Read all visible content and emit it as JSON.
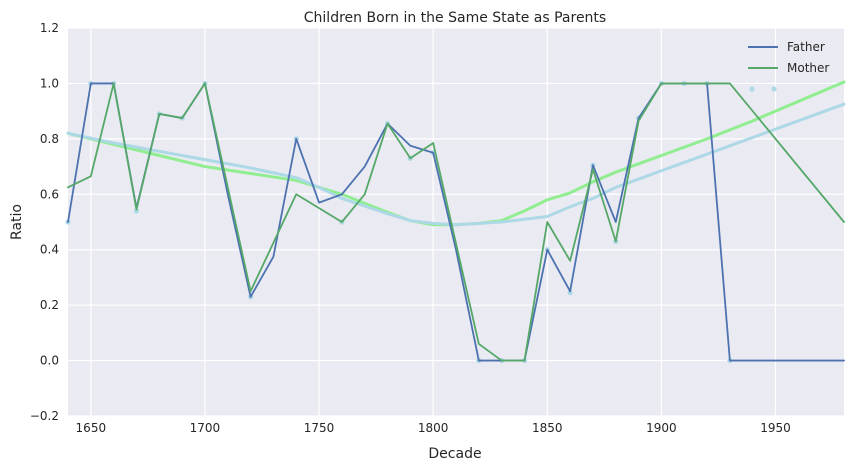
{
  "chart_data": {
    "type": "line",
    "title": "Children Born in the Same State as Parents",
    "xlabel": "Decade",
    "ylabel": "Ratio",
    "xlim": [
      1640,
      1980
    ],
    "ylim": [
      -0.2,
      1.2
    ],
    "xticks": [
      1650,
      1700,
      1750,
      1800,
      1850,
      1900,
      1950
    ],
    "yticks": [
      -0.2,
      0.0,
      0.2,
      0.4,
      0.6,
      0.8,
      1.0,
      1.2
    ],
    "xtick_labels": [
      "1650",
      "1700",
      "1750",
      "1800",
      "1850",
      "1900",
      "1950"
    ],
    "ytick_labels": [
      "−0.2",
      "0.0",
      "0.2",
      "0.4",
      "0.6",
      "0.8",
      "1.0",
      "1.2"
    ],
    "grid": true,
    "legend_position": "top-right",
    "series": [
      {
        "name": "Father",
        "color": "#4c72b0",
        "style": "line",
        "x": [
          1640,
          1650,
          1660,
          1670,
          1680,
          1690,
          1700,
          1710,
          1720,
          1730,
          1740,
          1750,
          1760,
          1770,
          1780,
          1790,
          1800,
          1810,
          1820,
          1830,
          1840,
          1850,
          1860,
          1870,
          1880,
          1890,
          1900,
          1910,
          1920,
          1930,
          1940,
          1950,
          1960,
          1970,
          1980
        ],
        "y": [
          0.5,
          1.0,
          1.0,
          0.55,
          0.89,
          0.875,
          1.0,
          0.6,
          0.23,
          0.375,
          0.8,
          0.57,
          0.6,
          0.7,
          0.855,
          0.775,
          0.75,
          0.4,
          0.0,
          0.0,
          0.0,
          0.4,
          0.25,
          0.705,
          0.5,
          0.875,
          1.0,
          1.0,
          1.0,
          0.0,
          0.0,
          0.0,
          0.0,
          0.0,
          0.0
        ]
      },
      {
        "name": "Mother",
        "color": "#55a868",
        "style": "line",
        "x": [
          1640,
          1650,
          1660,
          1670,
          1680,
          1690,
          1700,
          1720,
          1740,
          1760,
          1770,
          1780,
          1790,
          1800,
          1820,
          1830,
          1840,
          1850,
          1860,
          1870,
          1880,
          1890,
          1900,
          1910,
          1920,
          1930,
          1980
        ],
        "y": [
          0.625,
          0.665,
          1.0,
          0.545,
          0.89,
          0.875,
          1.0,
          0.25,
          0.6,
          0.5,
          0.6,
          0.855,
          0.73,
          0.785,
          0.06,
          0.0,
          0.0,
          0.5,
          0.36,
          0.69,
          0.43,
          0.865,
          1.0,
          1.0,
          1.0,
          1.0,
          0.5
        ]
      },
      {
        "name": "",
        "color": "#90ee90",
        "style": "smooth",
        "x": [
          1640,
          1660,
          1680,
          1700,
          1720,
          1740,
          1760,
          1780,
          1790,
          1800,
          1810,
          1820,
          1830,
          1840,
          1850,
          1860,
          1870,
          1880,
          1890,
          1900,
          1920,
          1940,
          1960,
          1980
        ],
        "y": [
          0.82,
          0.78,
          0.74,
          0.7,
          0.675,
          0.65,
          0.6,
          0.535,
          0.505,
          0.49,
          0.49,
          0.495,
          0.505,
          0.54,
          0.58,
          0.605,
          0.645,
          0.68,
          0.71,
          0.74,
          0.8,
          0.865,
          0.935,
          1.005
        ]
      },
      {
        "name": "",
        "color": "#add8e6",
        "style": "smooth",
        "x": [
          1640,
          1660,
          1680,
          1700,
          1720,
          1740,
          1750,
          1760,
          1780,
          1790,
          1800,
          1810,
          1820,
          1830,
          1840,
          1850,
          1860,
          1870,
          1880,
          1900,
          1920,
          1940,
          1960,
          1980
        ],
        "y": [
          0.82,
          0.785,
          0.755,
          0.725,
          0.695,
          0.66,
          0.625,
          0.585,
          0.53,
          0.505,
          0.495,
          0.49,
          0.495,
          0.5,
          0.51,
          0.52,
          0.555,
          0.585,
          0.625,
          0.685,
          0.745,
          0.805,
          0.865,
          0.925
        ]
      },
      {
        "name": "",
        "color": "#add8e6",
        "style": "scatter",
        "x": [
          1640,
          1650,
          1660,
          1670,
          1680,
          1690,
          1700,
          1720,
          1740,
          1760,
          1780,
          1790,
          1800,
          1820,
          1830,
          1840,
          1850,
          1860,
          1870,
          1880,
          1890,
          1900,
          1910,
          1920,
          1930
        ],
        "y": [
          0.5,
          1.0,
          1.0,
          0.54,
          0.89,
          0.875,
          1.0,
          0.23,
          0.8,
          0.5,
          0.855,
          0.73,
          0.75,
          0.0,
          0.0,
          0.0,
          0.4,
          0.245,
          0.705,
          0.43,
          0.875,
          1.0,
          1.0,
          1.0,
          0.0
        ]
      }
    ]
  }
}
